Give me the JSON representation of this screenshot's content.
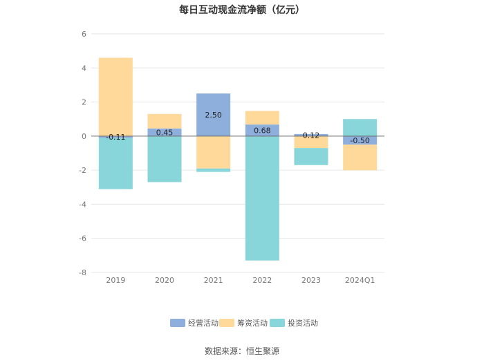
{
  "chart_data": {
    "type": "bar",
    "stacked": true,
    "title": "每日互动现金流净额（亿元）",
    "categories": [
      "2019",
      "2020",
      "2021",
      "2022",
      "2023",
      "2024Q1"
    ],
    "series": [
      {
        "name": "经营活动",
        "color": "#8eaedc",
        "values": [
          -0.11,
          0.45,
          2.5,
          0.68,
          0.12,
          -0.5
        ]
      },
      {
        "name": "筹资活动",
        "color": "#ffd99a",
        "values": [
          4.6,
          0.85,
          -1.9,
          0.8,
          -0.7,
          -1.5
        ]
      },
      {
        "name": "投资活动",
        "color": "#88d6da",
        "values": [
          -3.0,
          -2.7,
          -0.2,
          -7.3,
          -1.0,
          1.0
        ]
      }
    ],
    "data_labels": [
      "-0.11",
      "0.45",
      "2.50",
      "0.68",
      "0.12",
      "-0.50"
    ],
    "ylim": [
      -8,
      6
    ],
    "yticks": [
      6,
      4,
      2,
      0,
      -2,
      -4,
      -6,
      -8
    ],
    "grid": true,
    "legend_position": "bottom"
  },
  "source": "数据来源：恒生聚源"
}
